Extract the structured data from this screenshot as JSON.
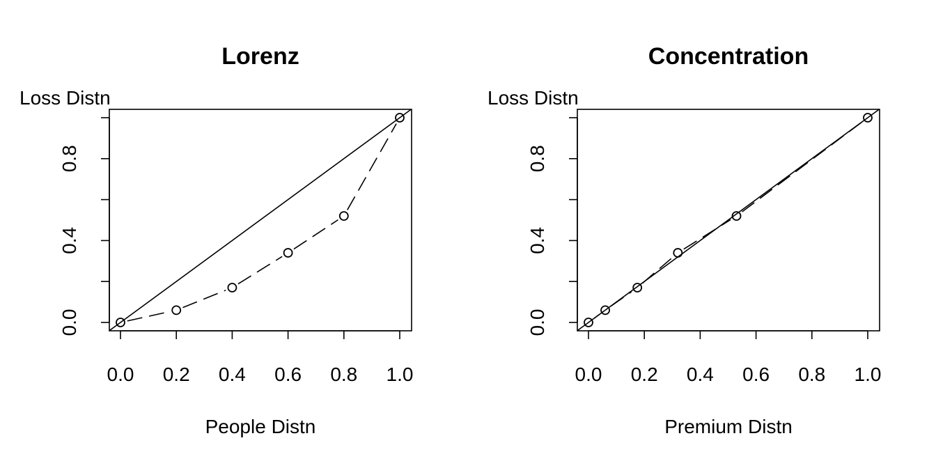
{
  "chart_data": [
    {
      "type": "line",
      "title": "Lorenz",
      "xlabel": "People Distn",
      "ylabel": "Loss Distn",
      "xlim": [
        0,
        1
      ],
      "ylim": [
        0,
        1
      ],
      "x_ticks": [
        0.0,
        0.2,
        0.4,
        0.6,
        0.8,
        1.0
      ],
      "x_tick_labels": [
        "0.0",
        "0.2",
        "0.4",
        "0.6",
        "0.8",
        "1.0"
      ],
      "y_ticks": [
        0.0,
        0.2,
        0.4,
        0.6,
        0.8,
        1.0
      ],
      "y_tick_labels": [
        "0.0",
        "",
        "0.4",
        "",
        "0.8",
        ""
      ],
      "grid": false,
      "reference_line": [
        [
          0,
          0
        ],
        [
          1,
          1
        ]
      ],
      "series": [
        {
          "x": [
            0.0,
            0.2,
            0.4,
            0.6,
            0.8,
            1.0
          ],
          "y": [
            0.0,
            0.06,
            0.17,
            0.34,
            0.52,
            1.0
          ],
          "line": "dashed",
          "marker": "open-circle"
        }
      ]
    },
    {
      "type": "line",
      "title": "Concentration",
      "xlabel": "Premium Distn",
      "ylabel": "Loss Distn",
      "xlim": [
        0,
        1
      ],
      "ylim": [
        0,
        1
      ],
      "x_ticks": [
        0.0,
        0.2,
        0.4,
        0.6,
        0.8,
        1.0
      ],
      "x_tick_labels": [
        "0.0",
        "0.2",
        "0.4",
        "0.6",
        "0.8",
        "1.0"
      ],
      "y_ticks": [
        0.0,
        0.2,
        0.4,
        0.6,
        0.8,
        1.0
      ],
      "y_tick_labels": [
        "0.0",
        "",
        "0.4",
        "",
        "0.8",
        ""
      ],
      "grid": false,
      "reference_line": [
        [
          0,
          0
        ],
        [
          1,
          1
        ]
      ],
      "series": [
        {
          "x": [
            0.0,
            0.06,
            0.175,
            0.32,
            0.53,
            1.0
          ],
          "y": [
            0.0,
            0.06,
            0.17,
            0.34,
            0.52,
            1.0
          ],
          "line": "dashed",
          "marker": "open-circle"
        }
      ]
    }
  ]
}
